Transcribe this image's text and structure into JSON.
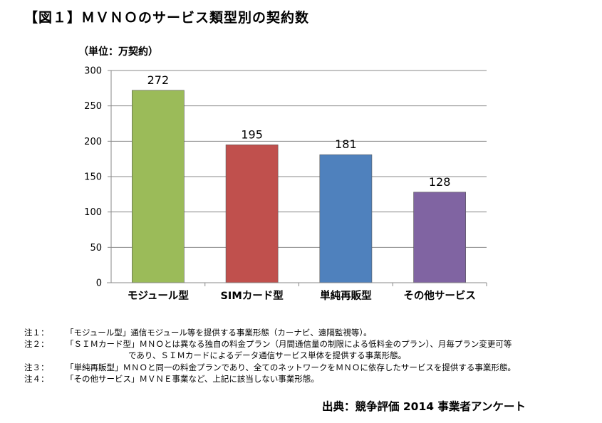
{
  "title": "【図１】ＭＶＮＯのサービス類型別の契約数",
  "unit_label": "（単位：万契約）",
  "chart_data": {
    "type": "bar",
    "categories": [
      "モジュール型",
      "SIMカード型",
      "単純再販型",
      "その他サービス"
    ],
    "values": [
      272,
      195,
      181,
      128
    ],
    "value_labels": [
      "272",
      "195",
      "181",
      "128"
    ],
    "colors": [
      "#9bbb59",
      "#c0504d",
      "#4f81bd",
      "#8064a2"
    ],
    "ylim": [
      0,
      300
    ],
    "yticks": [
      0,
      50,
      100,
      150,
      200,
      250,
      300
    ],
    "ytick_labels": [
      "0",
      "50",
      "100",
      "150",
      "200",
      "250",
      "300"
    ],
    "grid": true,
    "legend": "none"
  },
  "notes": [
    {
      "label": "注１：",
      "lines": [
        "「モジュール型」通信モジュール等を提供する事業形態（カーナビ、遠隔監視等）。"
      ]
    },
    {
      "label": "注２：",
      "lines": [
        "「ＳＩＭカード型」ＭＮＯとは異なる独自の料金プラン（月間通信量の制限による低料金のプラン）、月毎プラン変更可等",
        "であり、ＳＩＭカードによるデータ通信サービス単体を提供する事業形態。"
      ]
    },
    {
      "label": "注３：",
      "lines": [
        "「単純再販型」ＭＮＯと同一の料金プランであり、全てのネットワークをＭＮＯに依存したサービスを提供する事業形態。"
      ]
    },
    {
      "label": "注４：",
      "lines": [
        "「その他サービス」ＭＶＮＥ事業など、上記に該当しない事業形態。"
      ]
    }
  ],
  "source": "出典：競争評価 2014 事業者アンケート"
}
